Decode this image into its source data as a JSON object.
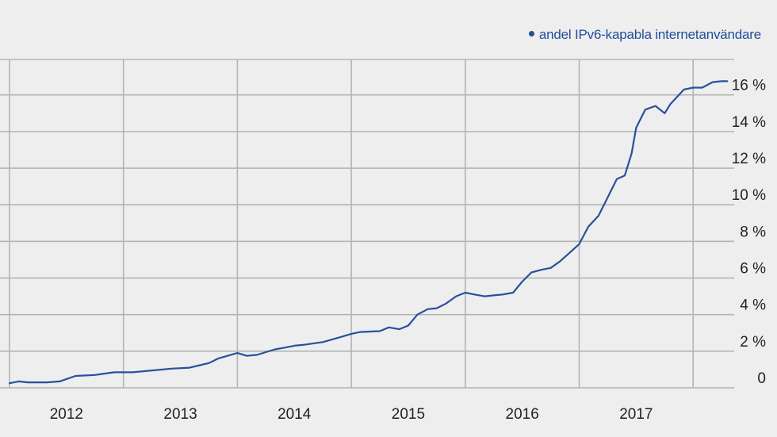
{
  "chart_data": {
    "type": "line",
    "title": "",
    "xlabel": "",
    "ylabel": "",
    "x_ticks": [
      "2012",
      "2013",
      "2014",
      "2015",
      "2016",
      "2017"
    ],
    "y_ticks": [
      "0",
      "2 %",
      "4 %",
      "6 %",
      "8 %",
      "10 %",
      "12 %",
      "14 %",
      "16 %"
    ],
    "ylim": [
      0,
      18
    ],
    "xlim": [
      2011.5,
      2017.92
    ],
    "grid": true,
    "legend_position": "top-right",
    "series": [
      {
        "name": "andel IPv6-kapabla internetanvändare",
        "color": "#2a4f9c",
        "points": [
          [
            2011.5,
            0.25
          ],
          [
            2011.58,
            0.35
          ],
          [
            2011.66,
            0.3
          ],
          [
            2011.83,
            0.3
          ],
          [
            2011.94,
            0.35
          ],
          [
            2012.08,
            0.65
          ],
          [
            2012.25,
            0.7
          ],
          [
            2012.42,
            0.85
          ],
          [
            2012.58,
            0.85
          ],
          [
            2012.75,
            0.95
          ],
          [
            2012.92,
            1.05
          ],
          [
            2013.08,
            1.1
          ],
          [
            2013.25,
            1.35
          ],
          [
            2013.33,
            1.6
          ],
          [
            2013.5,
            1.9
          ],
          [
            2013.58,
            1.75
          ],
          [
            2013.67,
            1.8
          ],
          [
            2013.83,
            2.1
          ],
          [
            2013.92,
            2.2
          ],
          [
            2014.0,
            2.3
          ],
          [
            2014.08,
            2.35
          ],
          [
            2014.25,
            2.5
          ],
          [
            2014.42,
            2.8
          ],
          [
            2014.5,
            2.95
          ],
          [
            2014.58,
            3.05
          ],
          [
            2014.75,
            3.1
          ],
          [
            2014.83,
            3.3
          ],
          [
            2014.92,
            3.2
          ],
          [
            2015.0,
            3.4
          ],
          [
            2015.08,
            4.0
          ],
          [
            2015.17,
            4.3
          ],
          [
            2015.25,
            4.35
          ],
          [
            2015.33,
            4.6
          ],
          [
            2015.42,
            5.0
          ],
          [
            2015.5,
            5.2
          ],
          [
            2015.58,
            5.1
          ],
          [
            2015.67,
            5.0
          ],
          [
            2015.75,
            5.05
          ],
          [
            2015.83,
            5.1
          ],
          [
            2015.92,
            5.2
          ],
          [
            2016.0,
            5.8
          ],
          [
            2016.08,
            6.3
          ],
          [
            2016.17,
            6.45
          ],
          [
            2016.25,
            6.55
          ],
          [
            2016.33,
            6.9
          ],
          [
            2016.42,
            7.4
          ],
          [
            2016.5,
            7.85
          ],
          [
            2016.58,
            8.8
          ],
          [
            2016.67,
            9.4
          ],
          [
            2016.75,
            10.4
          ],
          [
            2016.83,
            11.4
          ],
          [
            2016.9,
            11.6
          ],
          [
            2016.96,
            12.8
          ],
          [
            2017.0,
            14.2
          ],
          [
            2017.08,
            15.2
          ],
          [
            2017.17,
            15.4
          ],
          [
            2017.25,
            15.0
          ],
          [
            2017.3,
            15.5
          ],
          [
            2017.42,
            16.3
          ],
          [
            2017.5,
            16.4
          ],
          [
            2017.58,
            16.4
          ],
          [
            2017.67,
            16.7
          ],
          [
            2017.75,
            16.75
          ],
          [
            2017.8,
            16.75
          ]
        ]
      }
    ]
  },
  "legend": {
    "label": "andel IPv6-kapabla internetanvändare"
  },
  "colors": {
    "background": "#eeeeee",
    "grid": "#b4b4b4",
    "line": "#2a4f9c",
    "legend_text": "#1f4e9a"
  }
}
